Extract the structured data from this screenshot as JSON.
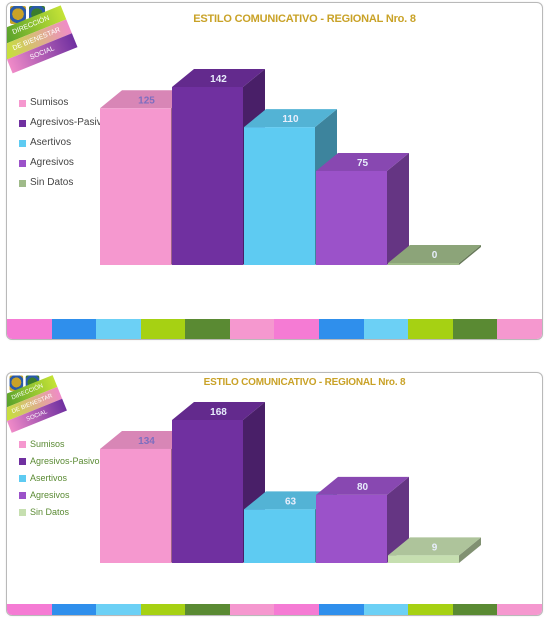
{
  "chart_data": [
    {
      "type": "bar",
      "title": "ESTILO COMUNICATIVO  - REGIONAL  Nro. 8",
      "categories": [
        "Sumisos",
        "Agresivos-Pasivos",
        "Asertivos",
        "Agresivos",
        "Sin Datos"
      ],
      "values": [
        125,
        142,
        110,
        75,
        0
      ],
      "ylim": [
        0,
        142
      ],
      "legend_position": "left",
      "grid": false,
      "colors": [
        "#f598cf",
        "#7030a0",
        "#5ecbf2",
        "#9b52c9",
        "#9fba89"
      ]
    },
    {
      "type": "bar",
      "title": "ESTILO COMUNICATIVO  - REGIONAL  Nro. 8",
      "categories": [
        "Sumisos",
        "Agresivos-Pasivos",
        "Asertivos",
        "Agresivos",
        "Sin Datos"
      ],
      "values": [
        134,
        168,
        63,
        80,
        9
      ],
      "ylim": [
        0,
        168
      ],
      "legend_position": "left",
      "grid": false,
      "colors": [
        "#f598cf",
        "#7030a0",
        "#5ecbf2",
        "#9b52c9",
        "#c6dfb0"
      ]
    }
  ],
  "logo": {
    "lines": [
      "DIRECCIÓN",
      "DE BIENESTAR",
      "SOCIAL"
    ],
    "colors": [
      "#4c9a2a",
      "#c5e336",
      "#f08bc8",
      "#7030a0"
    ]
  },
  "strip_colors": [
    "#f57bd4",
    "#2f8fec",
    "#6cd0f5",
    "#a6d113",
    "#5a8a33",
    "#f598cf",
    "#f57bd4",
    "#2f8fec",
    "#6cd0f5",
    "#a6d113",
    "#5a8a33",
    "#f598cf"
  ]
}
